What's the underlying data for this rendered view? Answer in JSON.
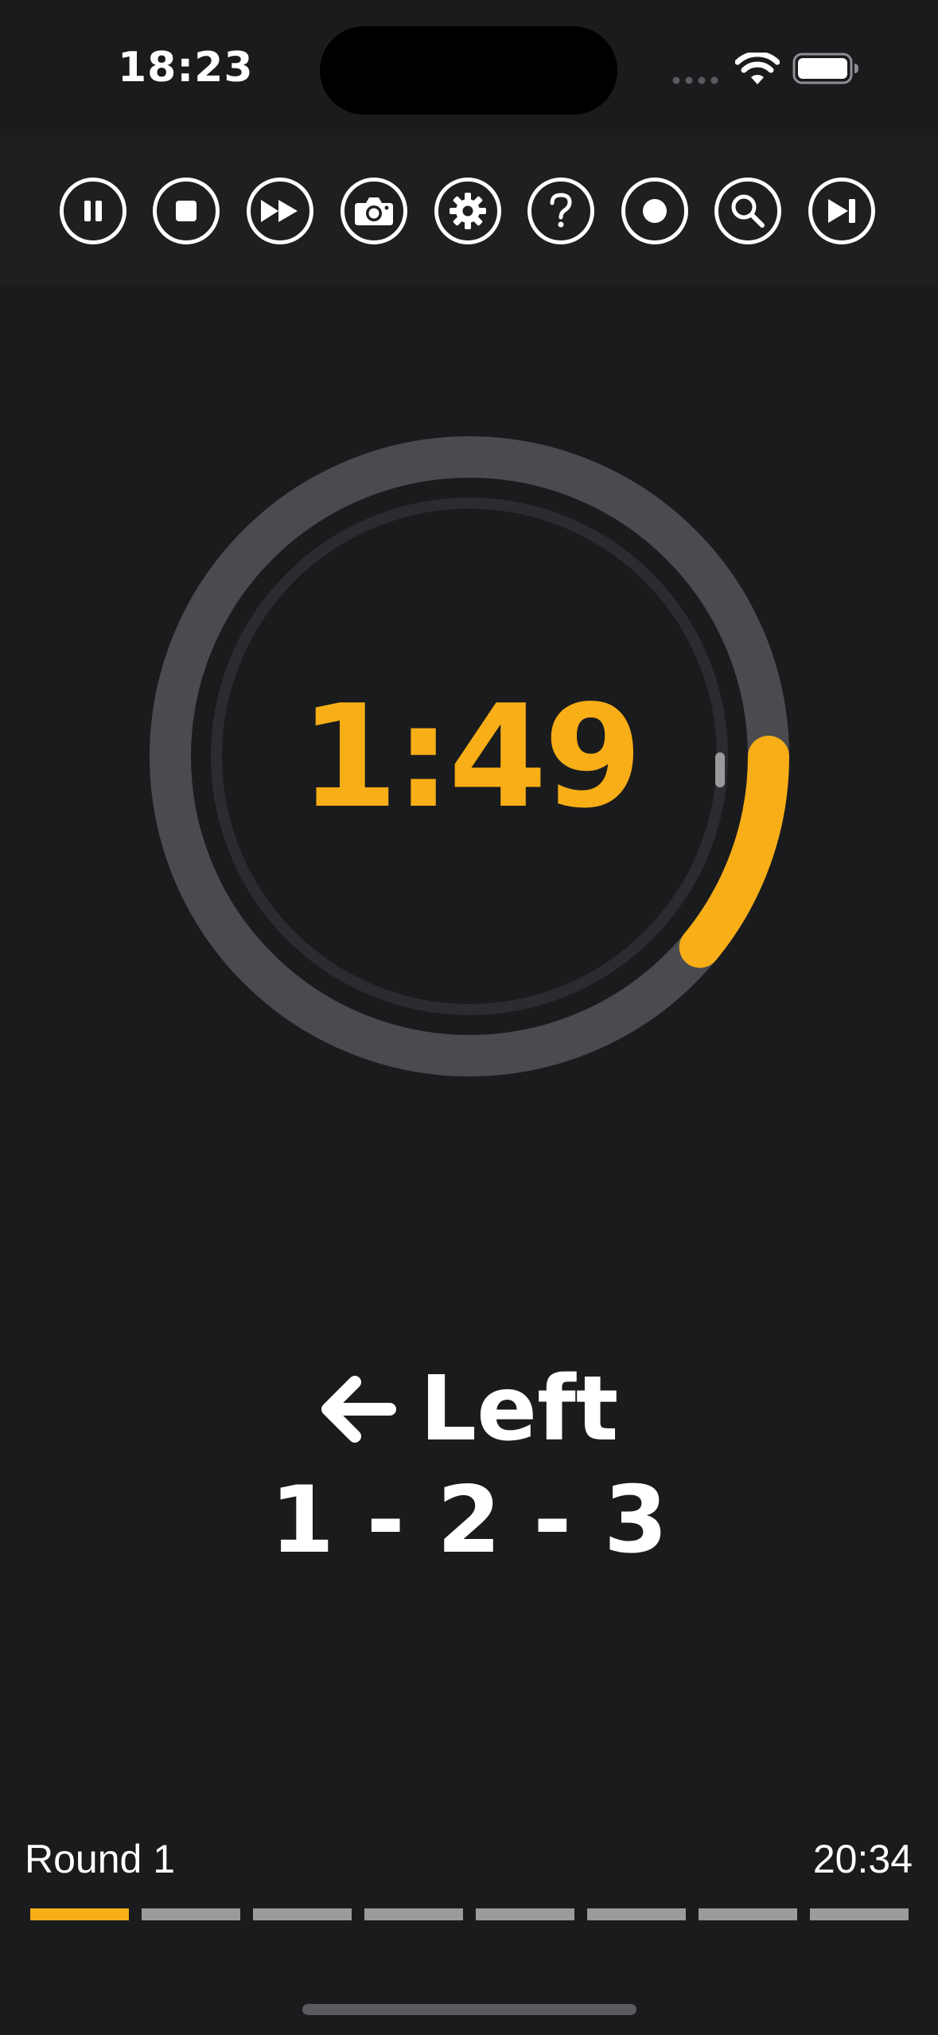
{
  "status_bar": {
    "time": "18:23"
  },
  "toolbar": {
    "buttons": [
      {
        "name": "pause-icon"
      },
      {
        "name": "stop-icon"
      },
      {
        "name": "fast-forward-icon"
      },
      {
        "name": "camera-icon"
      },
      {
        "name": "gear-icon"
      },
      {
        "name": "question-icon"
      },
      {
        "name": "record-icon"
      },
      {
        "name": "search-icon"
      },
      {
        "name": "skip-forward-icon"
      }
    ]
  },
  "timer": {
    "display": "1:49",
    "progress_fraction": 0.11,
    "accent_color": "#f7ae17"
  },
  "exercise": {
    "direction_icon": "arrow-left-icon",
    "direction": "Left",
    "combo": "1 - 2 - 3"
  },
  "footer": {
    "round_label": "Round 1",
    "total_time": "20:34",
    "segments_total": 8,
    "segments_active": 1
  },
  "colors": {
    "background": "#1a1b1d",
    "accent": "#f7ae17",
    "track": "#4a4b4e",
    "segment_inactive": "#9b9b9d"
  }
}
